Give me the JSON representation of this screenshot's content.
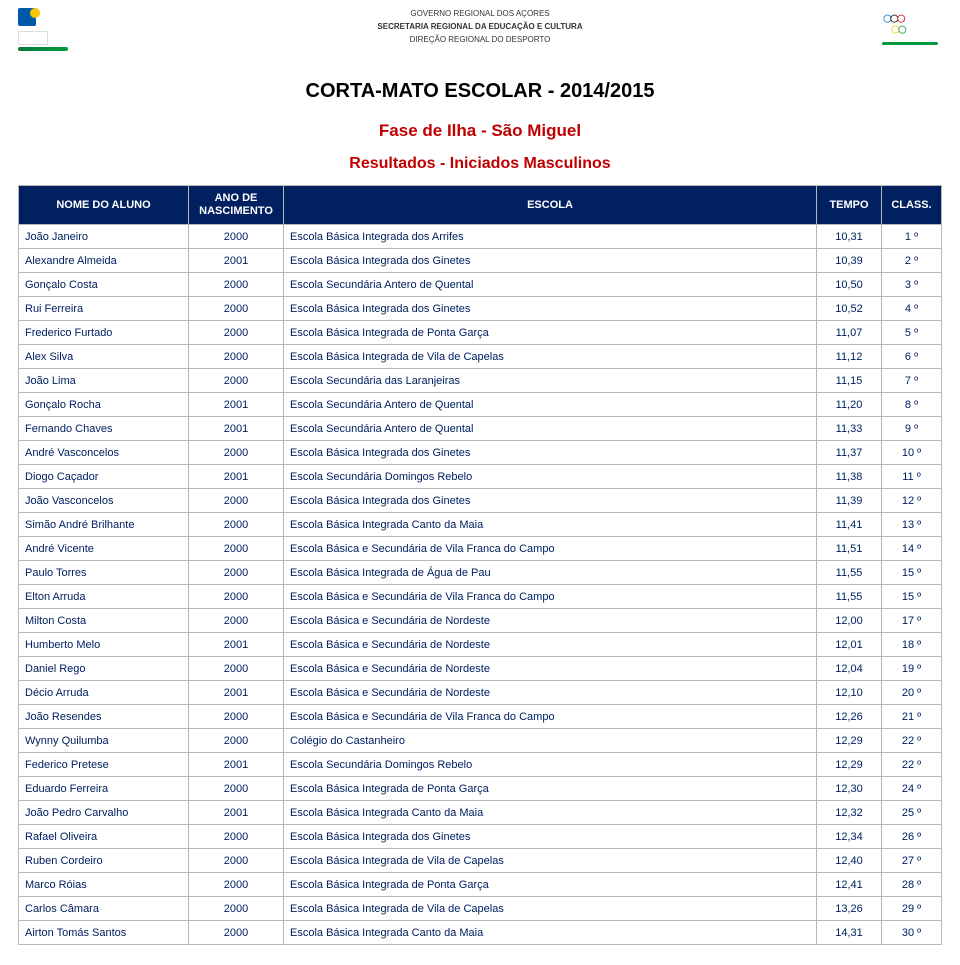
{
  "gov": {
    "line1": "GOVERNO REGIONAL DOS AÇORES",
    "line2": "SECRETARIA REGIONAL DA EDUCAÇÃO E CULTURA",
    "line3": "DIREÇÃO REGIONAL DO DESPORTO"
  },
  "main_title": "CORTA-MATO ESCOLAR - 2014/2015",
  "phase": "Fase de Ilha - São Miguel",
  "subtitle": "Resultados - Iniciados Masculinos",
  "headers": {
    "name": "NOME DO ALUNO",
    "year": "ANO DE NASCIMENTO",
    "school": "ESCOLA",
    "time": "TEMPO",
    "class": "CLASS."
  },
  "rows": [
    {
      "name": "João Janeiro",
      "year": "2000",
      "school": "Escola Básica Integrada dos Arrifes",
      "time": "10,31",
      "class": "1 º"
    },
    {
      "name": "Alexandre Almeida",
      "year": "2001",
      "school": "Escola Básica Integrada dos Ginetes",
      "time": "10,39",
      "class": "2 º"
    },
    {
      "name": "Gonçalo Costa",
      "year": "2000",
      "school": "Escola Secundária Antero de Quental",
      "time": "10,50",
      "class": "3 º"
    },
    {
      "name": "Rui Ferreira",
      "year": "2000",
      "school": "Escola Básica Integrada dos Ginetes",
      "time": "10,52",
      "class": "4 º"
    },
    {
      "name": "Frederico Furtado",
      "year": "2000",
      "school": "Escola Básica Integrada de Ponta Garça",
      "time": "11,07",
      "class": "5 º"
    },
    {
      "name": "Alex Silva",
      "year": "2000",
      "school": "Escola Básica Integrada de Vila de Capelas",
      "time": "11,12",
      "class": "6 º"
    },
    {
      "name": "João Lima",
      "year": "2000",
      "school": "Escola Secundária das Laranjeiras",
      "time": "11,15",
      "class": "7 º"
    },
    {
      "name": "Gonçalo Rocha",
      "year": "2001",
      "school": "Escola Secundária Antero de Quental",
      "time": "11,20",
      "class": "8 º"
    },
    {
      "name": "Fernando Chaves",
      "year": "2001",
      "school": "Escola Secundária Antero de Quental",
      "time": "11,33",
      "class": "9 º"
    },
    {
      "name": "André Vasconcelos",
      "year": "2000",
      "school": "Escola Básica Integrada dos Ginetes",
      "time": "11,37",
      "class": "10 º"
    },
    {
      "name": "Diogo Caçador",
      "year": "2001",
      "school": "Escola Secundária Domingos Rebelo",
      "time": "11,38",
      "class": "11 º"
    },
    {
      "name": "João Vasconcelos",
      "year": "2000",
      "school": "Escola Básica Integrada dos Ginetes",
      "time": "11,39",
      "class": "12 º"
    },
    {
      "name": "Simão André Brilhante",
      "year": "2000",
      "school": "Escola Básica Integrada Canto da Maia",
      "time": "11,41",
      "class": "13 º"
    },
    {
      "name": "André Vicente",
      "year": "2000",
      "school": "Escola Básica e Secundária de Vila Franca do Campo",
      "time": "11,51",
      "class": "14 º"
    },
    {
      "name": "Paulo Torres",
      "year": "2000",
      "school": "Escola Básica Integrada de Água de Pau",
      "time": "11,55",
      "class": "15 º"
    },
    {
      "name": "Elton Arruda",
      "year": "2000",
      "school": "Escola Básica e Secundária de Vila Franca do Campo",
      "time": "11,55",
      "class": "15 º"
    },
    {
      "name": "Milton Costa",
      "year": "2000",
      "school": "Escola Básica e Secundária de Nordeste",
      "time": "12,00",
      "class": "17 º"
    },
    {
      "name": "Humberto Melo",
      "year": "2001",
      "school": "Escola Básica e Secundária de Nordeste",
      "time": "12,01",
      "class": "18 º"
    },
    {
      "name": "Daniel Rego",
      "year": "2000",
      "school": "Escola Básica e Secundária de Nordeste",
      "time": "12,04",
      "class": "19 º"
    },
    {
      "name": "Décio Arruda",
      "year": "2001",
      "school": "Escola Básica e Secundária de Nordeste",
      "time": "12,10",
      "class": "20 º"
    },
    {
      "name": "João Resendes",
      "year": "2000",
      "school": "Escola Básica e Secundária de Vila Franca do Campo",
      "time": "12,26",
      "class": "21 º"
    },
    {
      "name": "Wynny Quilumba",
      "year": "2000",
      "school": "Colégio do Castanheiro",
      "time": "12,29",
      "class": "22 º"
    },
    {
      "name": "Federico Pretese",
      "year": "2001",
      "school": "Escola Secundária Domingos Rebelo",
      "time": "12,29",
      "class": "22 º"
    },
    {
      "name": "Eduardo Ferreira",
      "year": "2000",
      "school": "Escola Básica Integrada de Ponta Garça",
      "time": "12,30",
      "class": "24 º"
    },
    {
      "name": "João Pedro Carvalho",
      "year": "2001",
      "school": "Escola Básica Integrada Canto da Maia",
      "time": "12,32",
      "class": "25 º"
    },
    {
      "name": "Rafael Oliveira",
      "year": "2000",
      "school": "Escola Básica Integrada dos Ginetes",
      "time": "12,34",
      "class": "26 º"
    },
    {
      "name": "Ruben Cordeiro",
      "year": "2000",
      "school": "Escola Básica Integrada de Vila de Capelas",
      "time": "12,40",
      "class": "27 º"
    },
    {
      "name": "Marco Róias",
      "year": "2000",
      "school": "Escola Básica Integrada de Ponta Garça",
      "time": "12,41",
      "class": "28 º"
    },
    {
      "name": "Carlos Câmara",
      "year": "2000",
      "school": "Escola Básica Integrada de Vila de Capelas",
      "time": "13,26",
      "class": "29 º"
    },
    {
      "name": "Airton Tomás Santos",
      "year": "2000",
      "school": "Escola Básica Integrada Canto da Maia",
      "time": "14,31",
      "class": "30 º"
    }
  ],
  "colors": {
    "header_bg": "#002060",
    "header_fg": "#ffffff",
    "cell_fg": "#002060",
    "border": "#b7b7b7",
    "title_red": "#c00000"
  }
}
